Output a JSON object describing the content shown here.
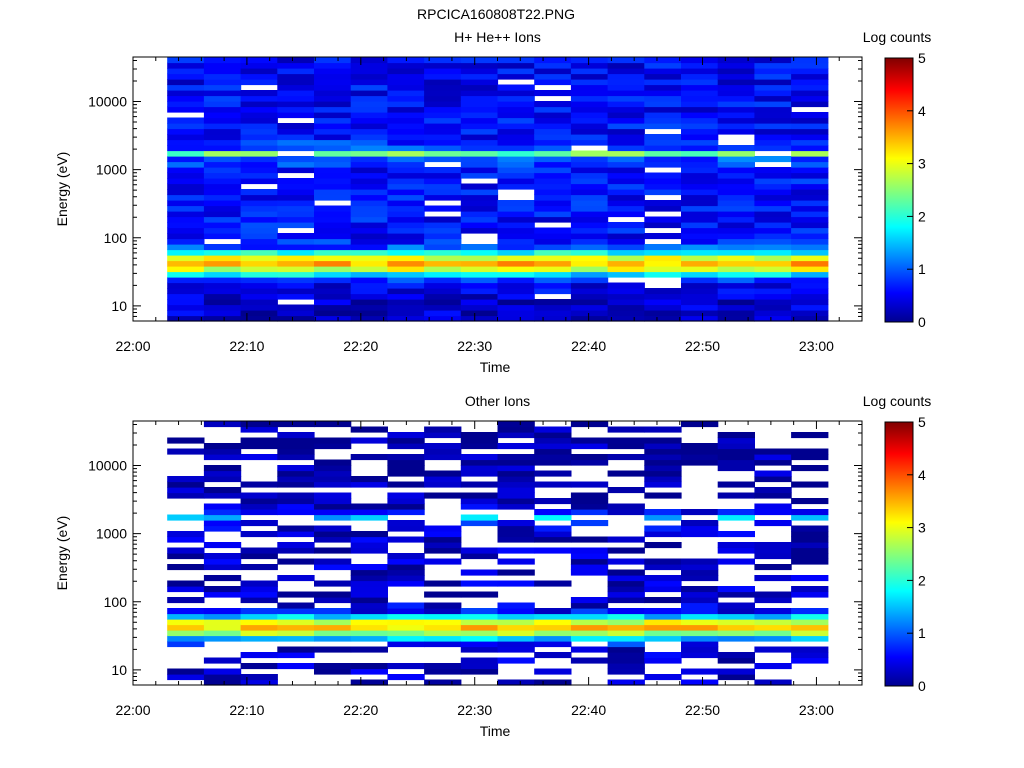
{
  "figure_title": "RPCICA160808T22.PNG",
  "colormap_stops": [
    "#00008f",
    "#0000ff",
    "#00ffff",
    "#ffff00",
    "#ff0000",
    "#800000"
  ],
  "empty_color": "#ffffff",
  "chart_data": [
    {
      "type": "heatmap",
      "title": "H+ He++ Ions",
      "xlabel": "Time",
      "ylabel": "Energy (eV)",
      "x_ticks": [
        "22:00",
        "22:10",
        "22:20",
        "22:30",
        "22:40",
        "22:50",
        "23:00"
      ],
      "xlim": [
        "22:00",
        "23:04"
      ],
      "y_scale": "log",
      "ylim": [
        6,
        45000
      ],
      "y_ticks": [
        10,
        100,
        1000,
        10000
      ],
      "y_tick_labels": [
        "10",
        "100",
        "1000",
        "10000"
      ],
      "colorbar": {
        "label": "Log counts",
        "range": [
          0,
          5
        ],
        "ticks": [
          "0",
          "1",
          "2",
          "3",
          "4",
          "5"
        ]
      },
      "data_start": "22:03",
      "data_end": "23:01",
      "time_bin_minutes": 3.2,
      "num_time_bins": 18,
      "band_levels": [
        {
          "energy": 6,
          "level": 0.3
        },
        {
          "energy": 10,
          "level": 0.3
        },
        {
          "energy": 20,
          "level": 0.5
        },
        {
          "energy": 27,
          "level": 1.1
        },
        {
          "energy": 33,
          "level": 2.6
        },
        {
          "energy": 40,
          "level": 3.5
        },
        {
          "energy": 48,
          "level": 3.4
        },
        {
          "energy": 58,
          "level": 2.2
        },
        {
          "energy": 70,
          "level": 1.0
        },
        {
          "energy": 100,
          "level": 0.6
        },
        {
          "energy": 1000,
          "level": 0.6
        },
        {
          "energy": 1500,
          "level": 1.0
        },
        {
          "energy": 1750,
          "level": 2.4
        },
        {
          "energy": 2000,
          "level": 1.0
        },
        {
          "energy": 3000,
          "level": 0.6
        },
        {
          "energy": 45000,
          "level": 0.5
        }
      ],
      "empty_fraction": 0.06
    },
    {
      "type": "heatmap",
      "title": "Other Ions",
      "xlabel": "Time",
      "ylabel": "Energy (eV)",
      "x_ticks": [
        "22:00",
        "22:10",
        "22:20",
        "22:30",
        "22:40",
        "22:50",
        "23:00"
      ],
      "xlim": [
        "22:00",
        "23:04"
      ],
      "y_scale": "log",
      "ylim": [
        6,
        45000
      ],
      "y_ticks": [
        10,
        100,
        1000,
        10000
      ],
      "y_tick_labels": [
        "10",
        "100",
        "1000",
        "10000"
      ],
      "colorbar": {
        "label": "Log counts",
        "range": [
          0,
          5
        ],
        "ticks": [
          "0",
          "1",
          "2",
          "3",
          "4",
          "5"
        ]
      },
      "data_start": "22:03",
      "data_end": "23:01",
      "time_bin_minutes": 3.2,
      "num_time_bins": 18,
      "band_levels": [
        {
          "energy": 6,
          "level": 0.2
        },
        {
          "energy": 10,
          "level": 0.2
        },
        {
          "energy": 20,
          "level": 0.3
        },
        {
          "energy": 27,
          "level": 0.9
        },
        {
          "energy": 33,
          "level": 2.4
        },
        {
          "energy": 40,
          "level": 3.3
        },
        {
          "energy": 48,
          "level": 3.3
        },
        {
          "energy": 58,
          "level": 2.0
        },
        {
          "energy": 70,
          "level": 0.6
        },
        {
          "energy": 100,
          "level": 0.25
        },
        {
          "energy": 1000,
          "level": 0.25
        },
        {
          "energy": 1500,
          "level": 0.6
        },
        {
          "energy": 1750,
          "level": 1.6
        },
        {
          "energy": 2000,
          "level": 0.5
        },
        {
          "energy": 3000,
          "level": 0.15
        },
        {
          "energy": 45000,
          "level": 0.1
        }
      ],
      "empty_fraction": 0.5
    }
  ]
}
